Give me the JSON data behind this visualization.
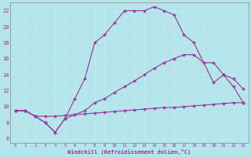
{
  "xlabel": "Windchill (Refroidissement éolien,°C)",
  "bg_color": "#b3e5eb",
  "grid_color": "#c8e8ec",
  "line_color": "#993399",
  "xlim": [
    -0.5,
    23.5
  ],
  "ylim": [
    5.5,
    23
  ],
  "xticks": [
    0,
    1,
    2,
    3,
    4,
    5,
    6,
    7,
    8,
    9,
    10,
    11,
    12,
    13,
    14,
    15,
    16,
    17,
    18,
    19,
    20,
    21,
    22,
    23
  ],
  "yticks": [
    6,
    8,
    10,
    12,
    14,
    16,
    18,
    20,
    22
  ],
  "line1_x": [
    0,
    1,
    2,
    3,
    4,
    5,
    6,
    7,
    8,
    9,
    10,
    11,
    12,
    13,
    14,
    15,
    16,
    17,
    18,
    20,
    21,
    22,
    23
  ],
  "line1_y": [
    9.5,
    9.5,
    8.8,
    8.0,
    6.8,
    8.5,
    11.0,
    13.5,
    18.0,
    19.0,
    20.5,
    22.0,
    22.0,
    22.0,
    22.5,
    22.0,
    21.5,
    19.0,
    18.0,
    13.0,
    14.0,
    12.5,
    10.5
  ],
  "line2_x": [
    0,
    1,
    2,
    3,
    4,
    5,
    6,
    7,
    8,
    9,
    10,
    11,
    12,
    13,
    14,
    15,
    16,
    17,
    18,
    19,
    20,
    21,
    22,
    23
  ],
  "line2_y": [
    9.5,
    9.5,
    8.8,
    8.0,
    6.8,
    8.5,
    9.0,
    9.5,
    10.5,
    11.0,
    11.8,
    12.5,
    13.2,
    14.0,
    14.8,
    15.5,
    16.0,
    16.5,
    16.5,
    15.5,
    15.5,
    14.0,
    13.5,
    12.2
  ],
  "line3_x": [
    0,
    1,
    2,
    3,
    4,
    5,
    6,
    7,
    8,
    9,
    10,
    11,
    12,
    13,
    14,
    15,
    16,
    17,
    18,
    19,
    20,
    21,
    22,
    23
  ],
  "line3_y": [
    9.5,
    9.5,
    8.8,
    8.8,
    8.8,
    8.9,
    9.0,
    9.1,
    9.2,
    9.3,
    9.4,
    9.5,
    9.6,
    9.7,
    9.8,
    9.9,
    9.9,
    10.0,
    10.1,
    10.2,
    10.3,
    10.4,
    10.5,
    10.5
  ]
}
